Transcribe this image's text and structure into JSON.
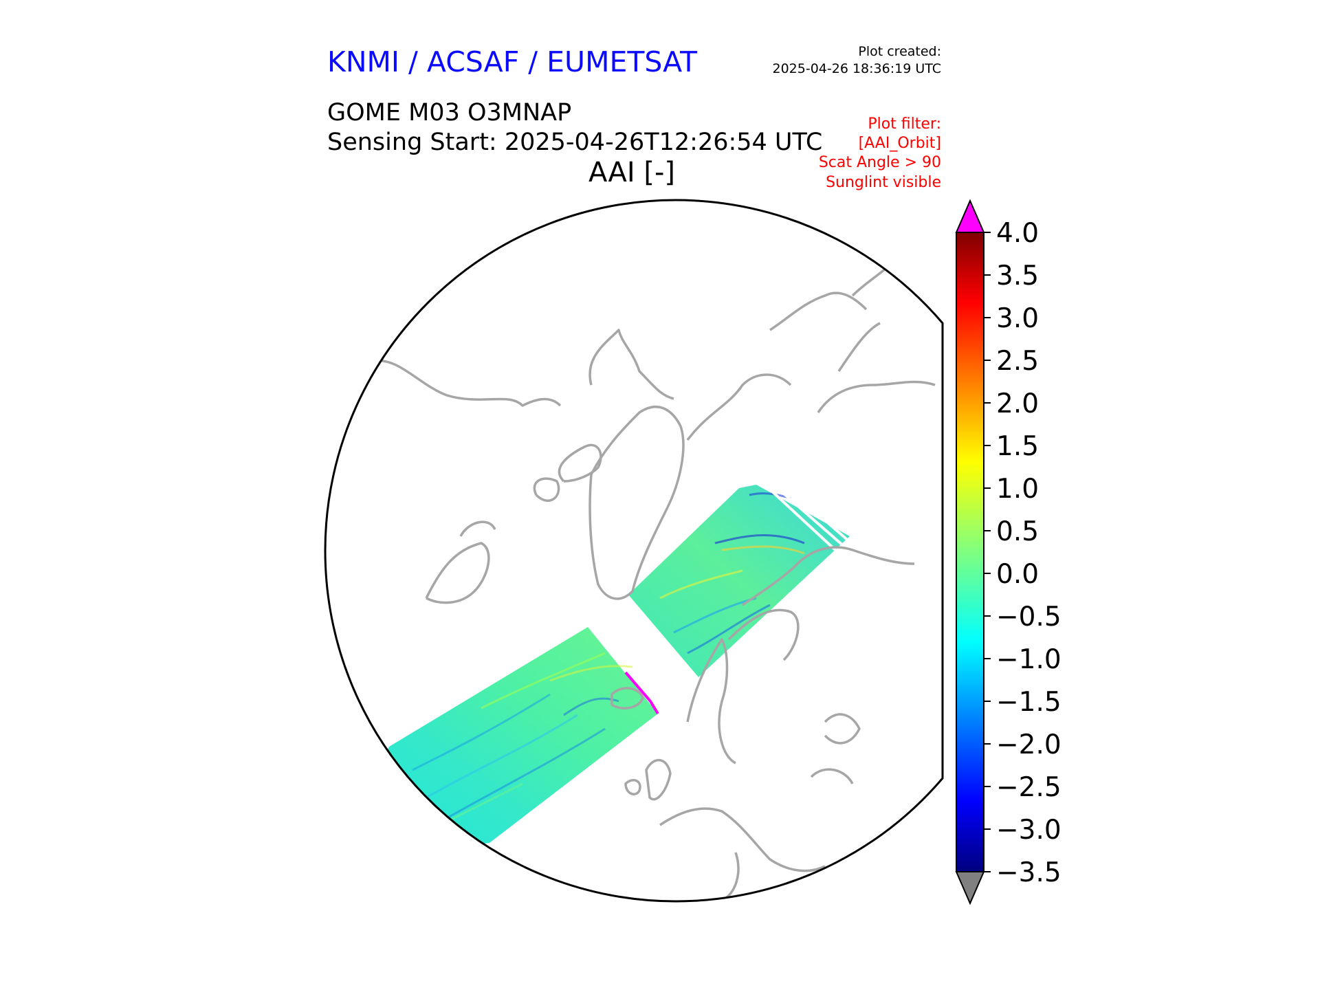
{
  "header": {
    "organization": "KNMI / ACSAF / EUMETSAT",
    "plot_created_label": "Plot created:",
    "plot_created_value": "2025-04-26 18:36:19 UTC",
    "product": "GOME M03 O3MNAP",
    "sensing_start": "Sensing Start: 2025-04-26T12:26:54 UTC",
    "variable_title": "AAI [-]"
  },
  "plot_filter": {
    "lines": [
      "Plot filter:",
      "[AAI_Orbit]",
      "Scat Angle > 90",
      "Sunglint visible"
    ]
  },
  "map": {
    "projection": "north-polar-stereographic",
    "coastline_color": "#a6a6a6",
    "border_color": "#000000",
    "swaths": [
      {
        "name": "swath-atlantic",
        "mean_aai": -0.6
      },
      {
        "name": "swath-eurasia-arctic",
        "mean_aai": -0.3
      }
    ]
  },
  "colorbar": {
    "min": -3.5,
    "max": 4.0,
    "step": 0.5,
    "ticks": [
      "4.0",
      "3.5",
      "3.0",
      "2.5",
      "2.0",
      "1.5",
      "1.0",
      "0.5",
      "0.0",
      "−0.5",
      "−1.0",
      "−1.5",
      "−2.0",
      "−2.5",
      "−3.0",
      "−3.5"
    ],
    "over_color": "#ff00ff",
    "under_color": "#808080",
    "colormap": [
      "#00007f",
      "#0000ff",
      "#007fff",
      "#00ffff",
      "#7fff7f",
      "#ffff00",
      "#ff7f00",
      "#ff0000",
      "#7f0000"
    ]
  }
}
